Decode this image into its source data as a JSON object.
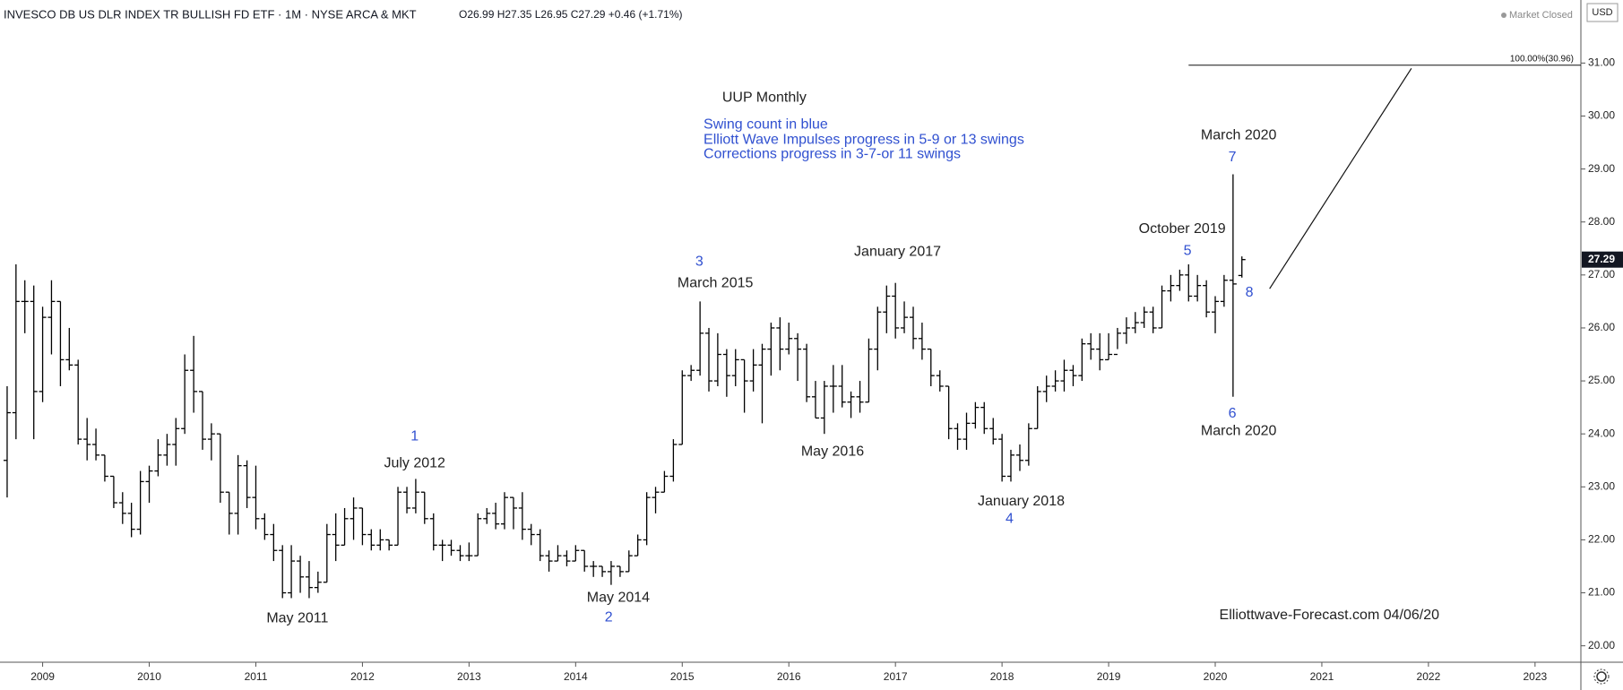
{
  "chart_data": {
    "type": "ohlc",
    "title": "INVESCO DB US DLR INDEX TR BULLISH FD ETF · 1M · NYSE ARCA & MKT",
    "legend_ohlc": "O26.99  H27.35  L26.95  C27.29  +0.46 (+1.71%)",
    "status": "Market Closed",
    "currency": "USD",
    "color": "#000000",
    "x": [
      2008.667,
      2008.75,
      2008.833,
      2008.917,
      2009,
      2009.083,
      2009.167,
      2009.25,
      2009.333,
      2009.417,
      2009.5,
      2009.583,
      2009.667,
      2009.75,
      2009.833,
      2009.917,
      2010,
      2010.083,
      2010.167,
      2010.25,
      2010.333,
      2010.417,
      2010.5,
      2010.583,
      2010.667,
      2010.75,
      2010.833,
      2010.917,
      2011,
      2011.083,
      2011.167,
      2011.25,
      2011.333,
      2011.417,
      2011.5,
      2011.583,
      2011.667,
      2011.75,
      2011.833,
      2011.917,
      2012,
      2012.083,
      2012.167,
      2012.25,
      2012.333,
      2012.417,
      2012.5,
      2012.583,
      2012.667,
      2012.75,
      2012.833,
      2012.917,
      2013,
      2013.083,
      2013.167,
      2013.25,
      2013.333,
      2013.417,
      2013.5,
      2013.583,
      2013.667,
      2013.75,
      2013.833,
      2013.917,
      2014,
      2014.083,
      2014.167,
      2014.25,
      2014.333,
      2014.417,
      2014.5,
      2014.583,
      2014.667,
      2014.75,
      2014.833,
      2014.917,
      2015,
      2015.083,
      2015.167,
      2015.25,
      2015.333,
      2015.417,
      2015.5,
      2015.583,
      2015.667,
      2015.75,
      2015.833,
      2015.917,
      2016,
      2016.083,
      2016.167,
      2016.25,
      2016.333,
      2016.417,
      2016.5,
      2016.583,
      2016.667,
      2016.75,
      2016.833,
      2016.917,
      2017,
      2017.083,
      2017.167,
      2017.25,
      2017.333,
      2017.417,
      2017.5,
      2017.583,
      2017.667,
      2017.75,
      2017.833,
      2017.917,
      2018,
      2018.083,
      2018.167,
      2018.25,
      2018.333,
      2018.417,
      2018.5,
      2018.583,
      2018.667,
      2018.75,
      2018.833,
      2018.917,
      2019,
      2019.083,
      2019.167,
      2019.25,
      2019.333,
      2019.417,
      2019.5,
      2019.583,
      2019.667,
      2019.75,
      2019.833,
      2019.917,
      2020,
      2020.083,
      2020.167,
      2020.25
    ],
    "open": [
      23.5,
      24.4,
      26.5,
      26.5,
      24.8,
      26.2,
      26.5,
      25.4,
      25.3,
      23.9,
      23.8,
      23.6,
      23.2,
      22.7,
      22.5,
      22.2,
      23.1,
      23.3,
      23.6,
      23.8,
      24.1,
      25.2,
      24.8,
      23.9,
      24.0,
      22.9,
      22.5,
      23.4,
      22.8,
      22.4,
      22.1,
      21.8,
      21.0,
      21.6,
      21.3,
      21.1,
      21.2,
      22.1,
      21.9,
      22.4,
      22.6,
      22.1,
      21.9,
      22.0,
      21.9,
      22.9,
      22.6,
      22.9,
      22.4,
      21.9,
      21.9,
      21.8,
      21.7,
      21.7,
      22.4,
      22.5,
      22.3,
      22.8,
      22.6,
      22.2,
      22.1,
      21.7,
      21.6,
      21.7,
      21.6,
      21.8,
      21.5,
      21.5,
      21.4,
      21.5,
      21.4,
      21.7,
      22.0,
      22.8,
      22.9,
      23.2,
      23.8,
      25.1,
      25.2,
      25.9,
      25.0,
      25.5,
      25.1,
      25.4,
      25.0,
      25.3,
      25.6,
      26.0,
      25.6,
      25.8,
      25.6,
      24.7,
      24.3,
      24.9,
      24.9,
      24.6,
      24.7,
      24.6,
      25.6,
      26.3,
      26.6,
      26.0,
      26.2,
      25.8,
      25.6,
      25.1,
      24.9,
      24.1,
      23.9,
      24.2,
      24.5,
      24.1,
      23.9,
      23.2,
      23.6,
      23.5,
      24.1,
      24.8,
      24.9,
      25.0,
      25.2,
      25.1,
      25.7,
      25.6,
      25.4,
      25.5,
      25.9,
      26.0,
      26.1,
      26.3,
      26.0,
      26.7,
      26.8,
      27.0,
      26.6,
      26.8,
      26.3,
      26.5,
      26.9,
      26.99
    ],
    "high": [
      24.9,
      27.2,
      26.9,
      26.8,
      26.4,
      26.9,
      26.5,
      26.0,
      25.4,
      24.3,
      24.1,
      23.6,
      23.2,
      22.9,
      22.7,
      23.3,
      23.4,
      23.9,
      24.0,
      24.3,
      25.5,
      25.85,
      24.8,
      24.2,
      24.0,
      22.9,
      23.6,
      23.5,
      23.4,
      22.5,
      22.3,
      21.9,
      21.9,
      21.7,
      21.6,
      21.4,
      22.3,
      22.5,
      22.6,
      22.8,
      22.6,
      22.2,
      22.2,
      22.0,
      23.0,
      23.0,
      23.15,
      22.9,
      22.5,
      22.0,
      22.0,
      21.9,
      21.95,
      22.5,
      22.6,
      22.7,
      22.9,
      22.8,
      22.9,
      22.3,
      22.2,
      21.8,
      21.9,
      21.8,
      21.9,
      21.8,
      21.6,
      21.5,
      21.6,
      21.5,
      21.8,
      22.1,
      22.9,
      23.0,
      23.3,
      23.9,
      25.2,
      25.3,
      26.5,
      26.0,
      25.9,
      25.6,
      25.6,
      25.4,
      25.6,
      25.7,
      26.1,
      26.2,
      26.1,
      25.9,
      25.7,
      25.0,
      25.0,
      25.3,
      25.3,
      24.8,
      25.0,
      25.8,
      26.4,
      26.8,
      26.85,
      26.5,
      26.4,
      26.1,
      25.6,
      25.2,
      24.9,
      24.2,
      24.4,
      24.6,
      24.6,
      24.3,
      24.0,
      23.7,
      23.8,
      24.2,
      24.9,
      25.1,
      25.2,
      25.4,
      25.3,
      25.8,
      25.9,
      25.9,
      25.9,
      26.0,
      26.2,
      26.3,
      26.4,
      26.4,
      26.8,
      27.0,
      27.1,
      27.2,
      27.0,
      26.9,
      26.6,
      27.0,
      28.9,
      27.35
    ],
    "low": [
      22.8,
      23.9,
      25.9,
      23.9,
      24.6,
      25.5,
      24.9,
      25.2,
      23.8,
      23.5,
      23.5,
      23.1,
      22.6,
      22.3,
      22.05,
      22.1,
      22.7,
      23.2,
      23.4,
      23.4,
      24.0,
      24.4,
      23.7,
      23.5,
      22.7,
      22.1,
      22.1,
      22.6,
      22.2,
      22.0,
      21.6,
      20.9,
      20.9,
      21.0,
      20.9,
      21.0,
      21.2,
      21.6,
      21.9,
      22.0,
      21.9,
      21.8,
      21.8,
      21.8,
      21.9,
      22.5,
      22.5,
      22.3,
      21.8,
      21.6,
      21.7,
      21.6,
      21.6,
      21.7,
      22.3,
      22.2,
      22.2,
      22.2,
      22.0,
      21.9,
      21.6,
      21.4,
      21.6,
      21.5,
      21.6,
      21.4,
      21.3,
      21.3,
      21.15,
      21.3,
      21.4,
      21.7,
      21.9,
      22.5,
      22.9,
      23.1,
      23.8,
      25.0,
      25.1,
      24.8,
      24.9,
      24.7,
      24.9,
      24.4,
      24.8,
      24.2,
      25.1,
      25.2,
      25.5,
      25.0,
      24.6,
      24.3,
      24.0,
      24.4,
      24.5,
      24.3,
      24.4,
      24.6,
      25.2,
      25.9,
      25.8,
      25.9,
      25.6,
      25.4,
      24.9,
      24.8,
      23.9,
      23.7,
      23.7,
      24.1,
      24.0,
      23.8,
      23.1,
      23.1,
      23.3,
      23.4,
      24.1,
      24.6,
      24.8,
      24.8,
      24.9,
      25.0,
      25.4,
      25.2,
      25.4,
      25.6,
      25.7,
      25.9,
      26.0,
      25.9,
      26.0,
      26.5,
      26.7,
      26.5,
      26.5,
      26.2,
      25.9,
      26.4,
      24.7,
      26.95
    ],
    "close": [
      24.4,
      26.5,
      26.5,
      24.8,
      26.2,
      26.5,
      25.4,
      25.3,
      23.9,
      23.8,
      23.6,
      23.2,
      22.7,
      22.5,
      22.2,
      23.1,
      23.3,
      23.6,
      23.8,
      24.1,
      25.2,
      24.8,
      23.9,
      24.0,
      22.9,
      22.5,
      23.4,
      22.8,
      22.4,
      22.1,
      21.8,
      21.0,
      21.6,
      21.3,
      21.1,
      21.2,
      22.1,
      21.9,
      22.4,
      22.6,
      22.1,
      21.9,
      22.0,
      21.9,
      22.9,
      22.6,
      22.9,
      22.4,
      21.9,
      21.9,
      21.8,
      21.7,
      21.7,
      22.4,
      22.5,
      22.3,
      22.8,
      22.6,
      22.2,
      22.1,
      21.7,
      21.6,
      21.7,
      21.6,
      21.8,
      21.5,
      21.5,
      21.4,
      21.5,
      21.4,
      21.7,
      22.0,
      22.8,
      22.9,
      23.2,
      23.8,
      25.1,
      25.2,
      25.9,
      25.0,
      25.5,
      25.1,
      25.4,
      25.0,
      25.3,
      25.6,
      26.0,
      25.6,
      25.8,
      25.6,
      24.7,
      24.3,
      24.9,
      24.9,
      24.6,
      24.7,
      24.6,
      25.6,
      26.3,
      26.6,
      26.0,
      26.2,
      25.8,
      25.6,
      25.1,
      24.9,
      24.1,
      23.9,
      24.2,
      24.5,
      24.1,
      23.9,
      23.2,
      23.6,
      23.5,
      24.1,
      24.8,
      24.9,
      25.0,
      25.2,
      25.1,
      25.7,
      25.6,
      25.4,
      25.5,
      25.9,
      26.0,
      26.1,
      26.3,
      26.0,
      26.7,
      26.8,
      27.0,
      26.6,
      26.8,
      26.3,
      26.5,
      26.9,
      26.83,
      27.29
    ],
    "last_price": 27.29,
    "xlim": [
      2008.6,
      2023.43
    ],
    "ylim": [
      19.69,
      32.19
    ],
    "xticks": [
      2009,
      2010,
      2011,
      2012,
      2013,
      2014,
      2015,
      2016,
      2017,
      2018,
      2019,
      2020,
      2021,
      2022,
      2023
    ],
    "yticks": [
      {
        "value": 20,
        "label": "20.00"
      },
      {
        "value": 21,
        "label": "21.00"
      },
      {
        "value": 22,
        "label": "22.00"
      },
      {
        "value": 23,
        "label": "23.00"
      },
      {
        "value": 24,
        "label": "24.00"
      },
      {
        "value": 25,
        "label": "25.00"
      },
      {
        "value": 26,
        "label": "26.00"
      },
      {
        "value": 27,
        "label": "27.00"
      },
      {
        "value": 28,
        "label": "28.00"
      },
      {
        "value": 29,
        "label": "29.00"
      },
      {
        "value": 30,
        "label": "30.00"
      },
      {
        "value": 31,
        "label": "31.00"
      }
    ],
    "fib_level": {
      "value": 30.96,
      "label": "100.00%(30.96)",
      "x": [
        2019.75,
        2023.43
      ]
    },
    "trend_line": {
      "x": [
        2020.51,
        2021.84
      ],
      "y": [
        26.74,
        30.9
      ]
    },
    "annotations": [
      {
        "text": "UUP Monthly",
        "x": 2015.77,
        "y": 30.34,
        "color": "#222222"
      },
      {
        "text": "Swing count in blue",
        "x": 2015.2,
        "y": 29.83,
        "color": "#3050d0",
        "align": "start"
      },
      {
        "text": "Elliott Wave Impulses progress in 5-9 or 13 swings",
        "x": 2015.2,
        "y": 29.55,
        "color": "#3050d0",
        "align": "start"
      },
      {
        "text": "Corrections progress in 3-7-or 11 swings",
        "x": 2015.2,
        "y": 29.28,
        "color": "#3050d0",
        "align": "start"
      },
      {
        "text": "1",
        "x": 2012.49,
        "y": 23.95,
        "color": "#3050d0"
      },
      {
        "text": "July 2012",
        "x": 2012.49,
        "y": 23.44,
        "color": "#222222"
      },
      {
        "text": "May 2011",
        "x": 2011.39,
        "y": 20.51,
        "color": "#222222"
      },
      {
        "text": "May 2014",
        "x": 2014.4,
        "y": 20.9,
        "color": "#222222"
      },
      {
        "text": "2",
        "x": 2014.31,
        "y": 20.53,
        "color": "#3050d0"
      },
      {
        "text": "3",
        "x": 2015.16,
        "y": 27.25,
        "color": "#3050d0"
      },
      {
        "text": "March 2015",
        "x": 2015.31,
        "y": 26.84,
        "color": "#222222"
      },
      {
        "text": "May 2016",
        "x": 2016.41,
        "y": 23.66,
        "color": "#222222"
      },
      {
        "text": "January 2017",
        "x": 2017.02,
        "y": 27.43,
        "color": "#222222"
      },
      {
        "text": "January 2018",
        "x": 2018.18,
        "y": 22.72,
        "color": "#222222"
      },
      {
        "text": "4",
        "x": 2018.07,
        "y": 22.39,
        "color": "#3050d0"
      },
      {
        "text": "October 2019",
        "x": 2019.69,
        "y": 27.86,
        "color": "#222222"
      },
      {
        "text": "5",
        "x": 2019.74,
        "y": 27.45,
        "color": "#3050d0"
      },
      {
        "text": "March 2020",
        "x": 2020.22,
        "y": 29.63,
        "color": "#222222"
      },
      {
        "text": "7",
        "x": 2020.16,
        "y": 29.22,
        "color": "#3050d0"
      },
      {
        "text": "6",
        "x": 2020.16,
        "y": 24.38,
        "color": "#3050d0"
      },
      {
        "text": "March 2020",
        "x": 2020.22,
        "y": 24.05,
        "color": "#222222"
      },
      {
        "text": "8",
        "x": 2020.32,
        "y": 26.66,
        "color": "#3050d0"
      },
      {
        "text": "Elliottwave-Forecast.com 04/06/20",
        "x": 2021.07,
        "y": 20.57,
        "color": "#222222"
      }
    ]
  }
}
